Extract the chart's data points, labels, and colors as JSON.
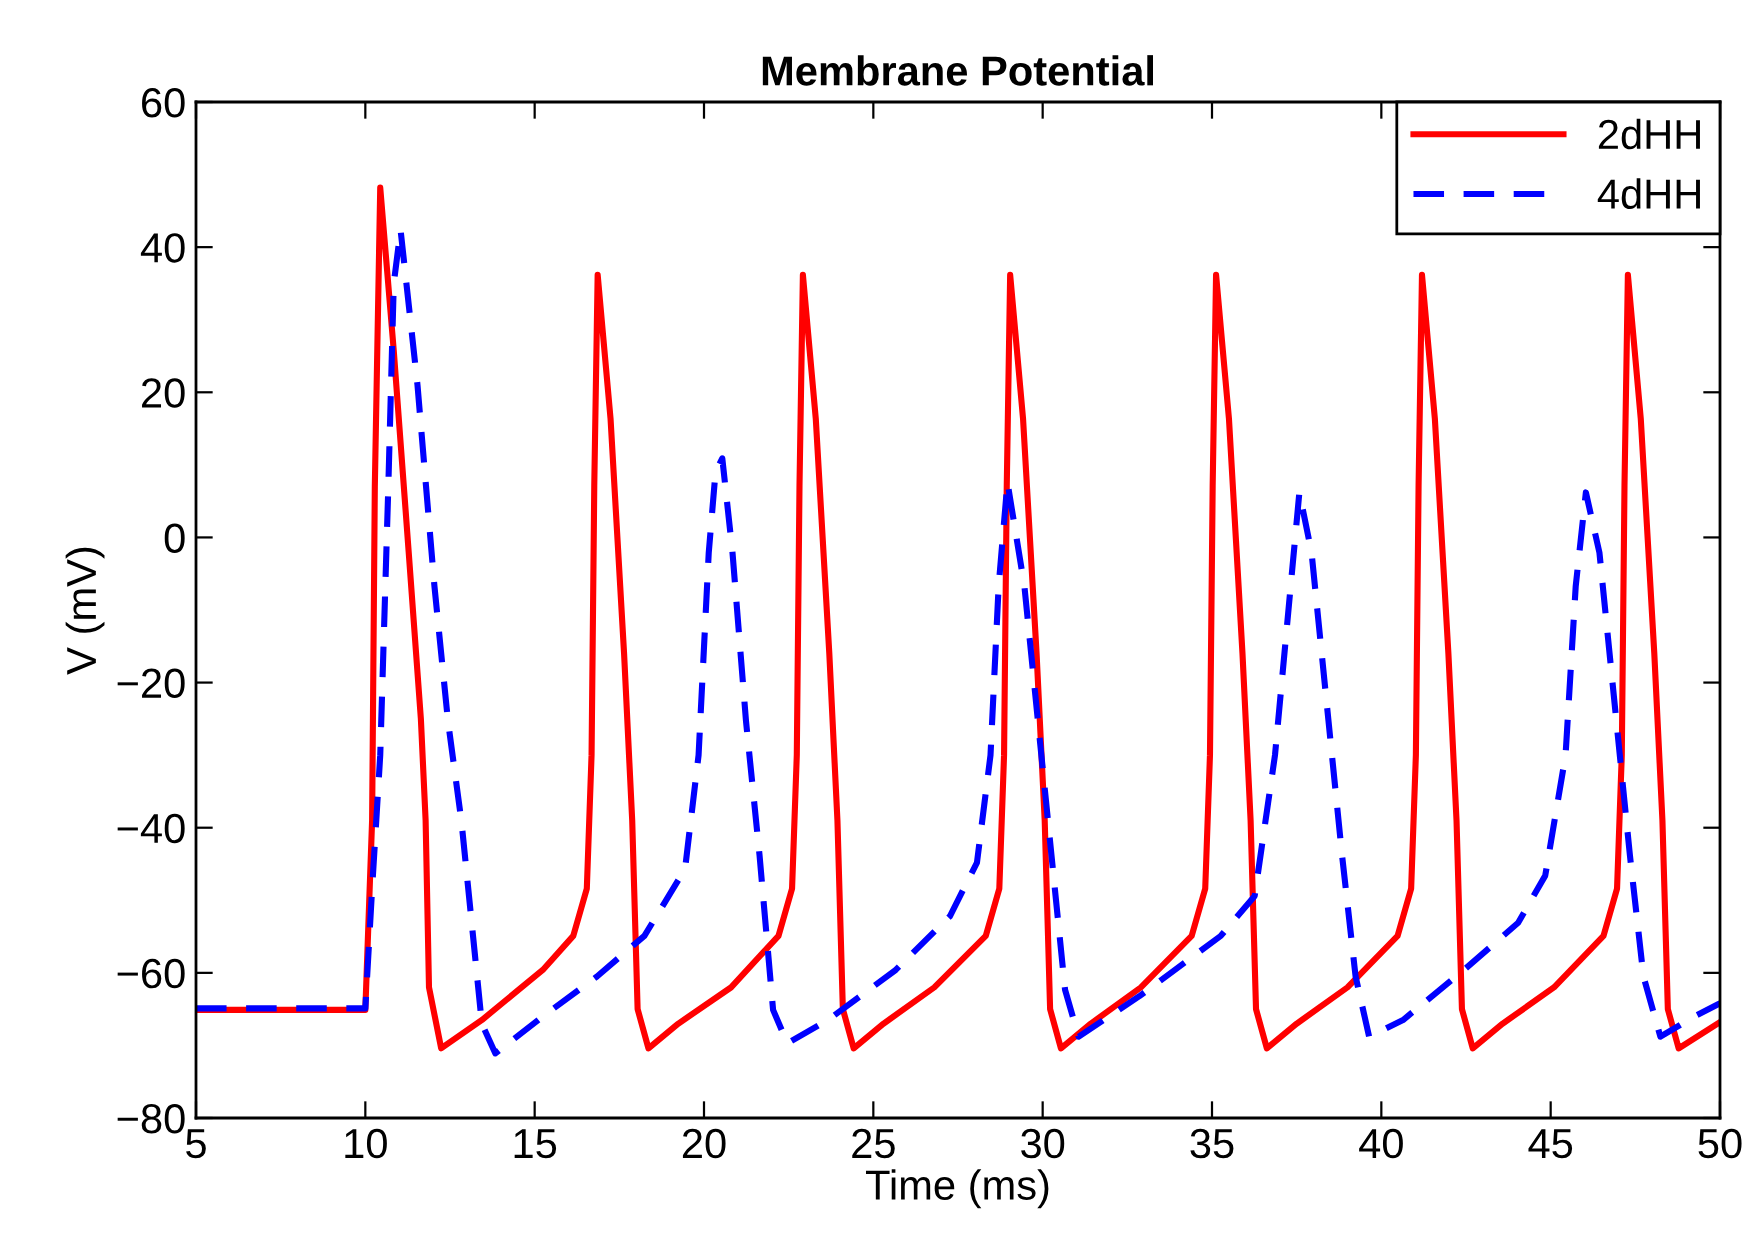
{
  "chart_data": {
    "type": "line",
    "title": "Membrane Potential",
    "xlabel": "Time (ms)",
    "ylabel": "V (mV)",
    "xlim": [
      5,
      50
    ],
    "xticks": [
      5,
      10,
      15,
      20,
      25,
      30,
      35,
      40,
      45,
      50
    ],
    "ylim": [
      -80,
      60
    ],
    "yticks": [
      {
        "value": -80,
        "label": "−80"
      },
      {
        "value": -60,
        "label": "−60"
      },
      {
        "value": -40,
        "label": "−40"
      },
      {
        "value": -20,
        "label": "−20"
      },
      0,
      20,
      40,
      60
    ],
    "grid": false,
    "legend": "top right",
    "series": [
      {
        "name": "2dHH",
        "color": "#ff0000",
        "line_style": "solid",
        "x": [
          5,
          10.0,
          10.2,
          10.28,
          10.44,
          10.84,
          11.28,
          11.64,
          11.78,
          11.88,
          12.24,
          13.44,
          15.24,
          16.14,
          16.54,
          16.68,
          16.76,
          16.86,
          17.24,
          17.64,
          17.88,
          18.04,
          18.36,
          19.24,
          20.8,
          22.2,
          22.6,
          22.74,
          22.82,
          22.92,
          23.3,
          23.7,
          23.94,
          24.1,
          24.42,
          25.3,
          26.8,
          28.32,
          28.72,
          28.86,
          28.94,
          29.04,
          29.42,
          29.82,
          30.06,
          30.22,
          30.54,
          31.42,
          32.9,
          34.4,
          34.8,
          34.94,
          35.02,
          35.12,
          35.5,
          35.9,
          36.14,
          36.3,
          36.62,
          37.5,
          39.0,
          40.48,
          40.88,
          41.02,
          41.1,
          41.2,
          41.58,
          41.98,
          42.22,
          42.38,
          42.7,
          43.58,
          45.1,
          46.56,
          46.96,
          47.1,
          47.18,
          47.28,
          47.66,
          48.06,
          48.3,
          48.46,
          48.78,
          50
        ],
        "values": [
          -65.1,
          -65.1,
          -39,
          7,
          48.2,
          25.7,
          -2,
          -25,
          -39,
          -62,
          -70.4,
          -66.5,
          -59.6,
          -54.9,
          -48.4,
          -30,
          7.2,
          36.2,
          16.4,
          -16,
          -39,
          -65,
          -70.4,
          -67,
          -62,
          -54.9,
          -48.4,
          -30,
          7.2,
          36.2,
          16.4,
          -16,
          -39,
          -65,
          -70.4,
          -67,
          -62,
          -54.9,
          -48.4,
          -30,
          7.2,
          36.2,
          16.4,
          -16,
          -39,
          -65,
          -70.4,
          -67,
          -62,
          -54.9,
          -48.4,
          -30,
          7.2,
          36.2,
          16.4,
          -16,
          -39,
          -65,
          -70.4,
          -67,
          -62,
          -54.9,
          -48.4,
          -30,
          7.2,
          36.2,
          16.4,
          -16,
          -39,
          -65,
          -70.4,
          -67,
          -62,
          -54.9,
          -48.4,
          -30,
          7.2,
          36.2,
          16.4,
          -16,
          -39,
          -65,
          -70.4,
          -66.8
        ]
      },
      {
        "name": "4dHH",
        "color": "#0000ff",
        "line_style": "dashed",
        "x": [
          5,
          10.0,
          10.2,
          10.44,
          10.68,
          10.84,
          11.04,
          11.54,
          12.04,
          12.44,
          12.84,
          13.24,
          13.44,
          13.84,
          15.24,
          16.84,
          18.24,
          19.44,
          19.84,
          20.14,
          20.34,
          20.54,
          20.84,
          21.24,
          21.64,
          22.04,
          22.46,
          23.66,
          25.66,
          27.26,
          28.06,
          28.46,
          28.7,
          28.96,
          29.46,
          29.86,
          30.26,
          30.66,
          31.06,
          32.86,
          35.26,
          36.26,
          36.86,
          37.58,
          37.94,
          38.44,
          38.84,
          39.24,
          39.64,
          40.64,
          42.44,
          44.04,
          44.84,
          45.44,
          45.74,
          46.04,
          46.44,
          46.94,
          47.34,
          47.74,
          48.24,
          49.24,
          50
        ],
        "values": [
          -64.9,
          -64.9,
          -48.4,
          -30,
          7.2,
          35,
          42.4,
          21,
          -6.7,
          -25.3,
          -39.2,
          -57.7,
          -67,
          -71.1,
          -66,
          -60.5,
          -54.9,
          -45.7,
          -30,
          -2.1,
          9,
          10.9,
          -2,
          -25.3,
          -43.8,
          -65.1,
          -69.7,
          -66.5,
          -59.6,
          -52.2,
          -44.8,
          -30,
          -6.7,
          7.6,
          -6.7,
          -25.3,
          -43.8,
          -62.3,
          -68.8,
          -63.2,
          -54.9,
          -49.4,
          -30,
          6.2,
          -2.1,
          -25.3,
          -43.8,
          -60.5,
          -68.8,
          -66.5,
          -59.6,
          -53.1,
          -46.6,
          -30,
          -6.7,
          6.2,
          -2.1,
          -25.3,
          -43.8,
          -60.5,
          -68.8,
          -66,
          -64.2
        ]
      }
    ]
  }
}
